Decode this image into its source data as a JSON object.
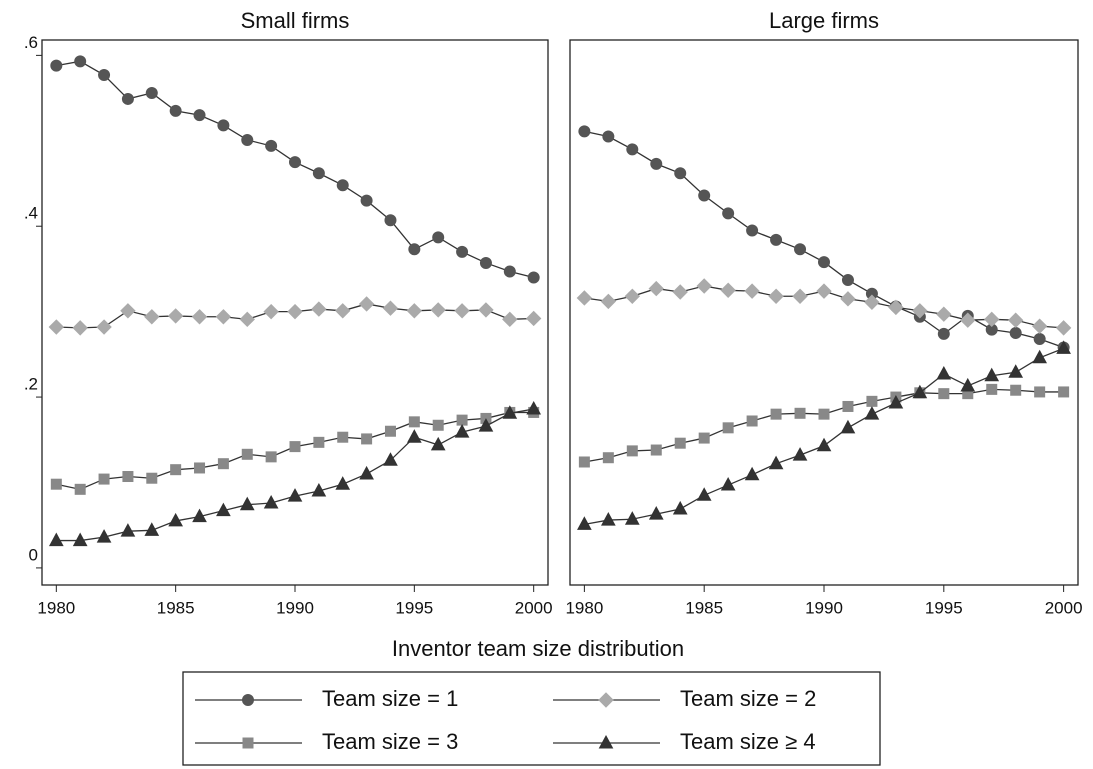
{
  "chart_data": [
    {
      "type": "line",
      "title": "Small firms",
      "x": [
        1980,
        1981,
        1982,
        1983,
        1984,
        1985,
        1986,
        1987,
        1988,
        1989,
        1990,
        1991,
        1992,
        1993,
        1994,
        1995,
        1996,
        1997,
        1998,
        1999,
        2000
      ],
      "xlim": [
        1979.4,
        2000.6
      ],
      "xticks": [
        1980,
        1985,
        1990,
        1995,
        2000
      ],
      "ylim": [
        -0.02,
        0.618
      ],
      "yticks": [
        0,
        {
          "value": 0.2,
          "label": ".2"
        },
        {
          "value": 0.4,
          "label": ".4"
        },
        {
          "value": 0.6,
          "label": ".6"
        }
      ],
      "line_color": "#333333",
      "series": [
        {
          "name": "Team size = 1",
          "color": "#555555",
          "marker": "circle",
          "values": [
            0.588,
            0.593,
            0.577,
            0.549,
            0.556,
            0.535,
            0.53,
            0.518,
            0.501,
            0.494,
            0.475,
            0.462,
            0.448,
            0.43,
            0.407,
            0.373,
            0.387,
            0.37,
            0.357,
            0.347,
            0.34
          ]
        },
        {
          "name": "Team size = 2",
          "color": "#aaaaaa",
          "marker": "diamond",
          "values": [
            0.282,
            0.281,
            0.282,
            0.301,
            0.294,
            0.295,
            0.294,
            0.294,
            0.291,
            0.3,
            0.3,
            0.303,
            0.301,
            0.309,
            0.304,
            0.301,
            0.302,
            0.301,
            0.302,
            0.291,
            0.292
          ]
        },
        {
          "name": "Team size = 3",
          "color": "#888888",
          "marker": "square",
          "values": [
            0.098,
            0.092,
            0.104,
            0.107,
            0.105,
            0.115,
            0.117,
            0.122,
            0.133,
            0.13,
            0.142,
            0.147,
            0.153,
            0.151,
            0.16,
            0.171,
            0.167,
            0.173,
            0.175,
            0.182,
            0.182
          ]
        },
        {
          "name": "Team size ≥ 4",
          "color": "#333333",
          "marker": "triangle",
          "values": [
            0.032,
            0.032,
            0.036,
            0.043,
            0.044,
            0.055,
            0.06,
            0.067,
            0.074,
            0.076,
            0.084,
            0.09,
            0.098,
            0.11,
            0.126,
            0.153,
            0.144,
            0.159,
            0.166,
            0.181,
            0.186
          ]
        }
      ]
    },
    {
      "type": "line",
      "title": "Large firms",
      "x": [
        1980,
        1981,
        1982,
        1983,
        1984,
        1985,
        1986,
        1987,
        1988,
        1989,
        1990,
        1991,
        1992,
        1993,
        1994,
        1995,
        1996,
        1997,
        1998,
        1999,
        2000
      ],
      "xlim": [
        1979.4,
        2000.6
      ],
      "xticks": [
        1980,
        1985,
        1990,
        1995,
        2000
      ],
      "ylim": [
        -0.02,
        0.618
      ],
      "line_color": "#333333",
      "series": [
        {
          "color": "#555555",
          "marker": "circle",
          "values": [
            0.511,
            0.505,
            0.49,
            0.473,
            0.462,
            0.436,
            0.415,
            0.395,
            0.384,
            0.373,
            0.358,
            0.337,
            0.321,
            0.306,
            0.294,
            0.274,
            0.295,
            0.279,
            0.275,
            0.268,
            0.258
          ]
        },
        {
          "color": "#aaaaaa",
          "marker": "diamond",
          "values": [
            0.316,
            0.312,
            0.318,
            0.327,
            0.323,
            0.33,
            0.325,
            0.324,
            0.318,
            0.318,
            0.324,
            0.315,
            0.311,
            0.305,
            0.301,
            0.297,
            0.29,
            0.291,
            0.29,
            0.283,
            0.281
          ]
        },
        {
          "color": "#888888",
          "marker": "square",
          "values": [
            0.124,
            0.129,
            0.137,
            0.138,
            0.146,
            0.152,
            0.164,
            0.172,
            0.18,
            0.181,
            0.18,
            0.189,
            0.195,
            0.2,
            0.205,
            0.204,
            0.204,
            0.209,
            0.208,
            0.206,
            0.206
          ]
        },
        {
          "color": "#333333",
          "marker": "triangle",
          "values": [
            0.051,
            0.056,
            0.057,
            0.063,
            0.069,
            0.085,
            0.097,
            0.109,
            0.122,
            0.132,
            0.143,
            0.164,
            0.18,
            0.193,
            0.205,
            0.227,
            0.213,
            0.225,
            0.229,
            0.246,
            0.257
          ]
        }
      ]
    }
  ],
  "xlabel": "Inventor team size distribution"
}
